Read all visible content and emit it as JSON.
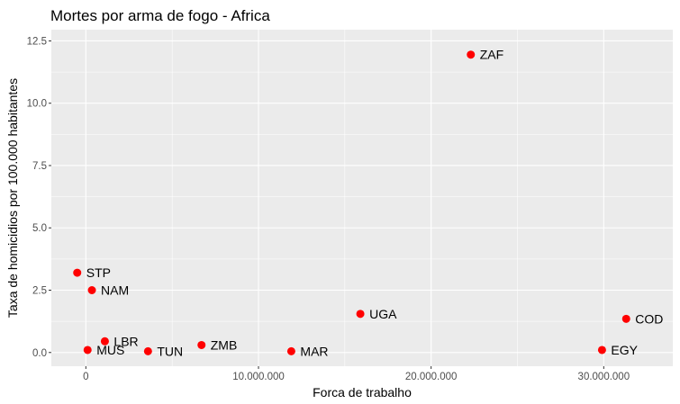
{
  "chart_data": {
    "type": "scatter",
    "title": "Mortes por arma de fogo - Africa",
    "xlabel": "Forca de trabalho",
    "ylabel": "Taxa de homicidios por 100.000 habitantes",
    "xlim": [
      -2000000,
      34000000
    ],
    "ylim": [
      -0.55,
      12.95
    ],
    "x_ticks": [
      0,
      10000000,
      20000000,
      30000000
    ],
    "x_tick_labels": [
      "0",
      "10.000.000",
      "20.000.000",
      "30.000.000"
    ],
    "y_ticks": [
      0,
      2.5,
      5,
      7.5,
      10,
      12.5
    ],
    "y_tick_labels": [
      "0.0",
      "2.5",
      "5.0",
      "7.5",
      "10.0",
      "12.5"
    ],
    "grid": true,
    "point_color": "#ff0000",
    "panel_color": "#ebebeb",
    "grid_color": "#ffffff",
    "points": [
      {
        "label": "ZAF",
        "x": 22300000,
        "y": 11.95
      },
      {
        "label": "STP",
        "x": -500000,
        "y": 3.2
      },
      {
        "label": "NAM",
        "x": 350000,
        "y": 2.5
      },
      {
        "label": "UGA",
        "x": 15900000,
        "y": 1.55
      },
      {
        "label": "COD",
        "x": 31300000,
        "y": 1.35
      },
      {
        "label": "LBR",
        "x": 1100000,
        "y": 0.45
      },
      {
        "label": "MUS",
        "x": 100000,
        "y": 0.1
      },
      {
        "label": "TUN",
        "x": 3600000,
        "y": 0.05
      },
      {
        "label": "ZMB",
        "x": 6700000,
        "y": 0.3
      },
      {
        "label": "MAR",
        "x": 11900000,
        "y": 0.05
      },
      {
        "label": "EGY",
        "x": 29900000,
        "y": 0.1
      }
    ]
  }
}
